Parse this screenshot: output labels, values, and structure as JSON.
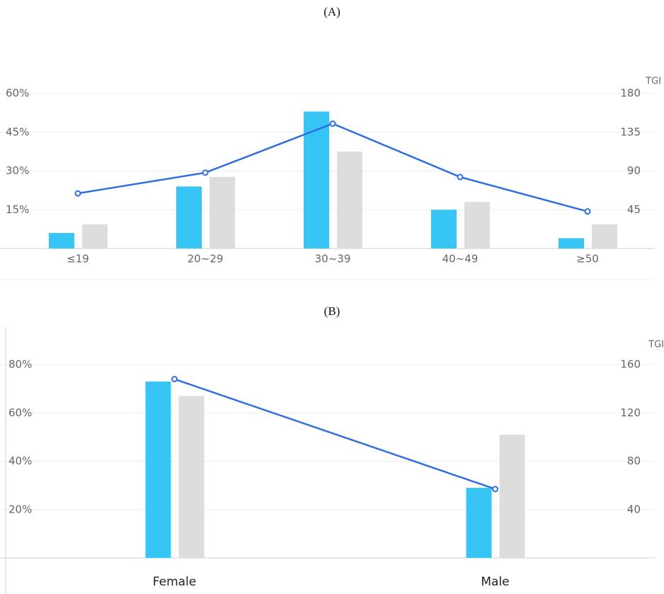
{
  "chart_data": [
    {
      "type": "bar",
      "title": "(A)",
      "categories": [
        "≤19",
        "20~29",
        "30~39",
        "40~49",
        "≥50"
      ],
      "series": [
        {
          "color": "#36c5f5",
          "values": [
            6,
            24,
            53,
            15,
            4
          ]
        },
        {
          "color": "#dddddd",
          "values": [
            9.3,
            27.7,
            37.5,
            18,
            9.3
          ]
        },
        {
          "type": "line",
          "axis": "y2",
          "color": "#2f6fe0",
          "values": [
            64,
            88,
            145,
            83,
            43
          ]
        }
      ],
      "ylim": [
        0,
        60
      ],
      "yticks": [
        {
          "value": 15,
          "label": "15%"
        },
        {
          "value": 30,
          "label": "30%"
        },
        {
          "value": 45,
          "label": "45%"
        },
        {
          "value": 60,
          "label": "60%"
        }
      ],
      "y2label": "TGI",
      "y2lim": [
        0,
        180
      ],
      "y2ticks": [
        45,
        90,
        135,
        180
      ],
      "grid": true
    },
    {
      "type": "bar",
      "title": "(B)",
      "categories": [
        "Female",
        "Male"
      ],
      "series": [
        {
          "color": "#36c5f5",
          "values": [
            73,
            29
          ]
        },
        {
          "color": "#dddddd",
          "values": [
            67,
            51
          ]
        },
        {
          "type": "line",
          "axis": "y2",
          "color": "#2f6fe0",
          "values": [
            148,
            57
          ]
        }
      ],
      "ylim": [
        0,
        80
      ],
      "yticks": [
        {
          "value": 20,
          "label": "20%"
        },
        {
          "value": 40,
          "label": "40%"
        },
        {
          "value": 60,
          "label": "60%"
        },
        {
          "value": 80,
          "label": "80%"
        }
      ],
      "y2label": "TGI",
      "y2lim": [
        0,
        160
      ],
      "y2ticks": [
        40,
        80,
        120,
        160
      ],
      "grid": true
    }
  ]
}
